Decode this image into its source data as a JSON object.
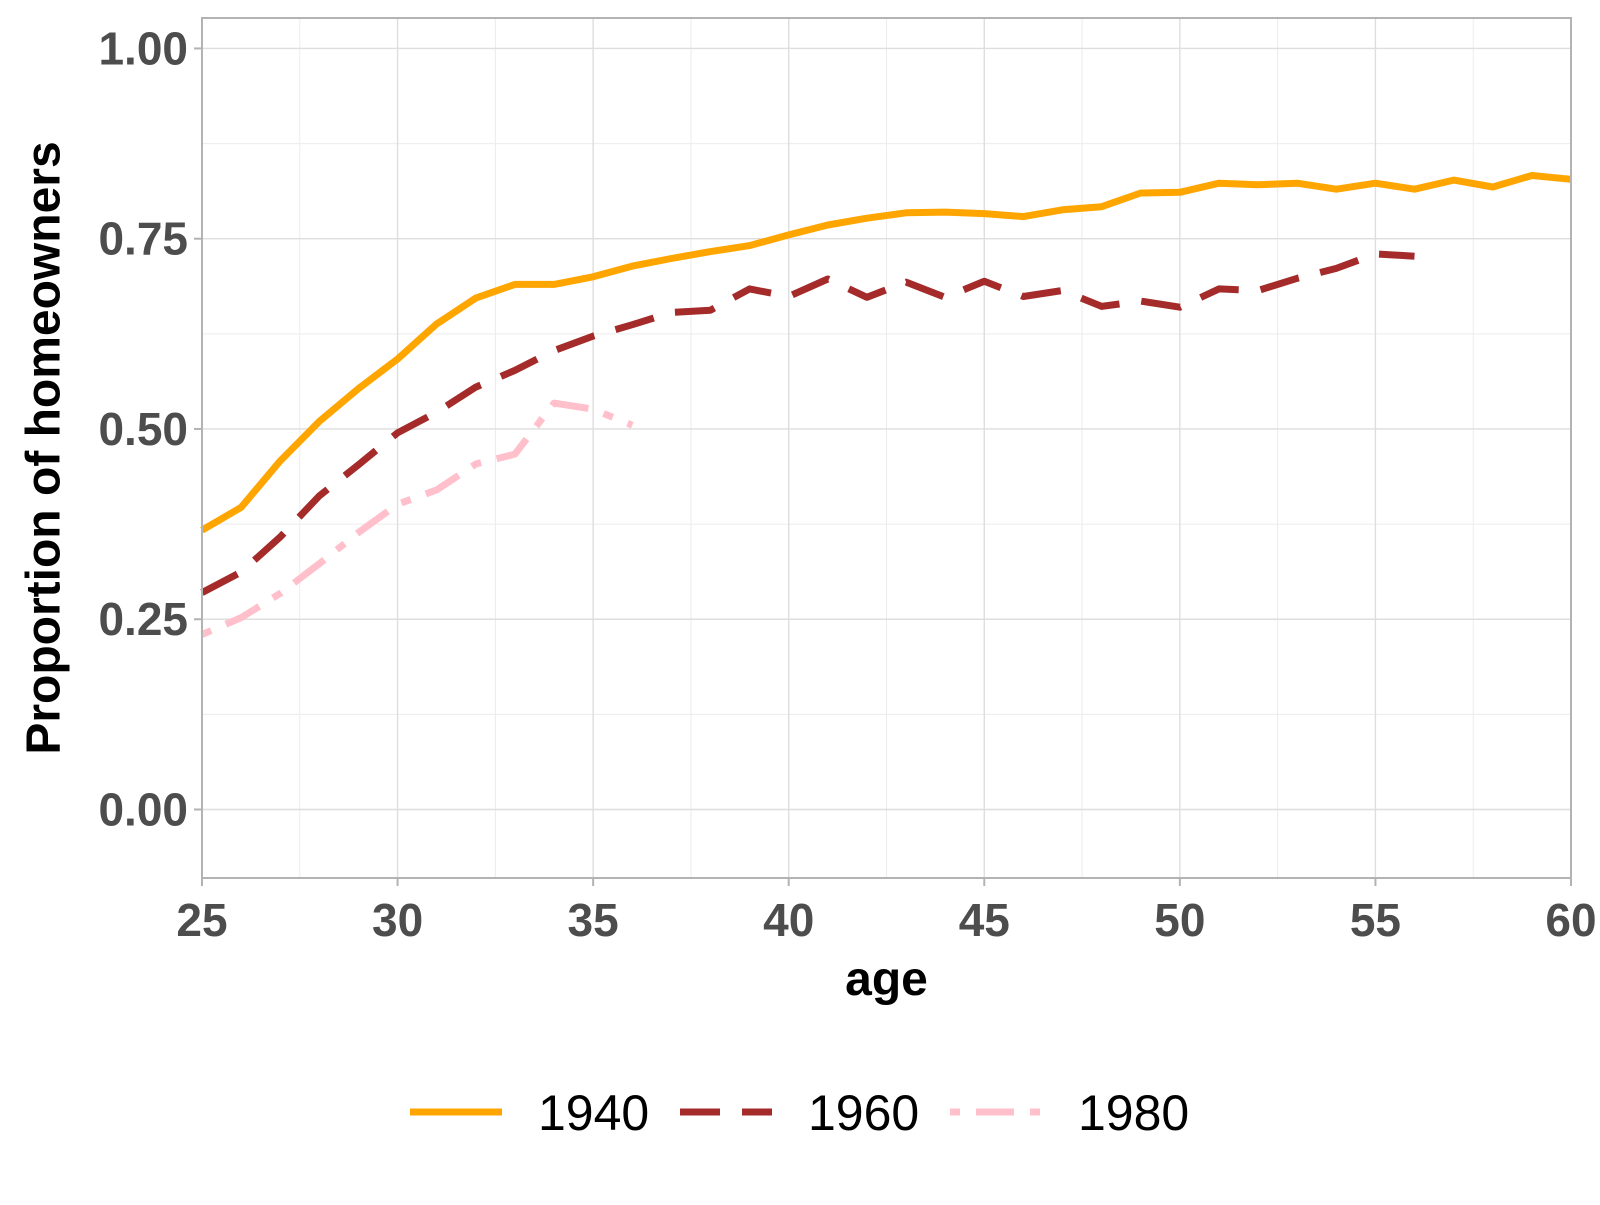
{
  "chart_data": {
    "type": "line",
    "title": "",
    "xlabel": "age",
    "ylabel": "Proportion of homeowners",
    "xlim": [
      25,
      60
    ],
    "ylim": [
      -0.09,
      1.04
    ],
    "x_ticks": [
      25,
      30,
      35,
      40,
      45,
      50,
      55,
      60
    ],
    "x_tick_labels": [
      "25",
      "30",
      "35",
      "40",
      "45",
      "50",
      "55",
      "60"
    ],
    "y_ticks": [
      0,
      0.25,
      0.5,
      0.75,
      1.0
    ],
    "y_tick_labels": [
      "0.00",
      "0.25",
      "0.50",
      "0.75",
      "1.00"
    ],
    "grid": true,
    "legend_position": "bottom",
    "series": [
      {
        "name": "1940",
        "color": "#FFA500",
        "line_style": "solid",
        "x": [
          25,
          26,
          27,
          28,
          29,
          30,
          31,
          32,
          33,
          34,
          35,
          36,
          37,
          38,
          39,
          40,
          41,
          42,
          43,
          44,
          45,
          46,
          47,
          48,
          49,
          50,
          51,
          52,
          53,
          54,
          55,
          56,
          57,
          58,
          59,
          60
        ],
        "y": [
          0.367,
          0.397,
          0.458,
          0.51,
          0.553,
          0.592,
          0.638,
          0.672,
          0.69,
          0.69,
          0.7,
          0.714,
          0.724,
          0.733,
          0.741,
          0.755,
          0.768,
          0.777,
          0.784,
          0.785,
          0.783,
          0.779,
          0.788,
          0.792,
          0.81,
          0.811,
          0.823,
          0.821,
          0.823,
          0.815,
          0.823,
          0.815,
          0.827,
          0.818,
          0.833,
          0.828
        ]
      },
      {
        "name": "1960",
        "color": "#A52A2A",
        "line_style": "dashed",
        "x": [
          25,
          26,
          27,
          28,
          29,
          30,
          31,
          32,
          33,
          34,
          35,
          36,
          37,
          38,
          39,
          40,
          41,
          42,
          43,
          44,
          45,
          46,
          47,
          48,
          49,
          50,
          51,
          52,
          53,
          54,
          55,
          56
        ],
        "y": [
          0.285,
          0.312,
          0.358,
          0.412,
          0.453,
          0.495,
          0.522,
          0.555,
          0.577,
          0.603,
          0.622,
          0.637,
          0.653,
          0.656,
          0.684,
          0.674,
          0.697,
          0.673,
          0.693,
          0.673,
          0.694,
          0.674,
          0.682,
          0.661,
          0.668,
          0.66,
          0.684,
          0.682,
          0.698,
          0.711,
          0.73,
          0.727
        ]
      },
      {
        "name": "1980",
        "color": "#FFC0CB",
        "line_style": "dotdash",
        "x": [
          25,
          26,
          27,
          28,
          29,
          30,
          31,
          32,
          33,
          34,
          35,
          36
        ],
        "y": [
          0.23,
          0.252,
          0.284,
          0.323,
          0.364,
          0.401,
          0.42,
          0.454,
          0.467,
          0.534,
          0.526,
          0.505
        ]
      }
    ]
  }
}
